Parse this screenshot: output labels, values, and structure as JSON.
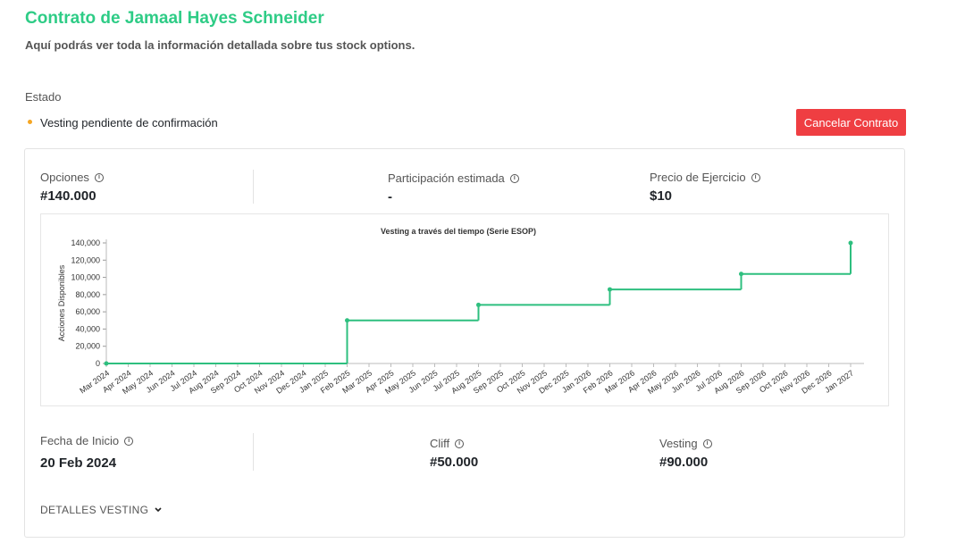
{
  "header": {
    "title": "Contrato de Jamaal Hayes Schneider",
    "subtitle": "Aquí podrás ver toda la información detallada sobre tus stock options."
  },
  "status": {
    "label": "Estado",
    "value": "Vesting pendiente de confirmación"
  },
  "cancel_button": "Cancelar Contrato",
  "stats": [
    {
      "label": "Opciones",
      "value": "#140.000"
    },
    {
      "label": "Participación estimada",
      "value": "-"
    },
    {
      "label": "Precio de Ejercicio",
      "value": "$10"
    },
    {
      "label": "Fecha de Inicio",
      "value": "20 Feb 2024"
    },
    {
      "label": "Cliff",
      "value": "#50.000"
    },
    {
      "label": "Vesting",
      "value": "#90.000"
    }
  ],
  "details_toggle": "DETALLES VESTING",
  "chart_data": {
    "type": "line",
    "step": true,
    "title": "Vesting a través del tiempo (Serie ESOP)",
    "y_label": "Acciones Disponibles",
    "categories": [
      "Mar 2024",
      "Apr 2024",
      "May 2024",
      "Jun 2024",
      "Jul 2024",
      "Aug 2024",
      "Sep 2024",
      "Oct 2024",
      "Nov 2024",
      "Dec 2024",
      "Jan 2025",
      "Feb 2025",
      "Mar 2025",
      "Apr 2025",
      "May 2025",
      "Jun 2025",
      "Jul 2025",
      "Aug 2025",
      "Sep 2025",
      "Oct 2025",
      "Nov 2025",
      "Dec 2025",
      "Jan 2026",
      "Feb 2026",
      "Mar 2026",
      "Apr 2026",
      "May 2026",
      "Jun 2026",
      "Jul 2026",
      "Aug 2026",
      "Sep 2026",
      "Oct 2026",
      "Nov 2026",
      "Dec 2026",
      "Jan 2027"
    ],
    "values": [
      0,
      0,
      0,
      0,
      0,
      0,
      0,
      0,
      0,
      0,
      0,
      50000,
      50000,
      50000,
      50000,
      50000,
      50000,
      68000,
      68000,
      68000,
      68000,
      68000,
      68000,
      86000,
      86000,
      86000,
      86000,
      86000,
      86000,
      104000,
      104000,
      104000,
      104000,
      104000,
      140000
    ],
    "color": "#2ebf7f",
    "ylim": [
      0,
      140000
    ],
    "yticks": [
      0,
      {
        "value": 20000,
        "label": "20,000"
      },
      {
        "value": 40000,
        "label": "40,000"
      },
      {
        "value": 60000,
        "label": "60,000"
      },
      {
        "value": 80000,
        "label": "80,000"
      },
      {
        "value": 100000,
        "label": "100,000"
      },
      {
        "value": 120000,
        "label": "120,000"
      },
      {
        "value": 140000,
        "label": "140,000"
      }
    ]
  }
}
